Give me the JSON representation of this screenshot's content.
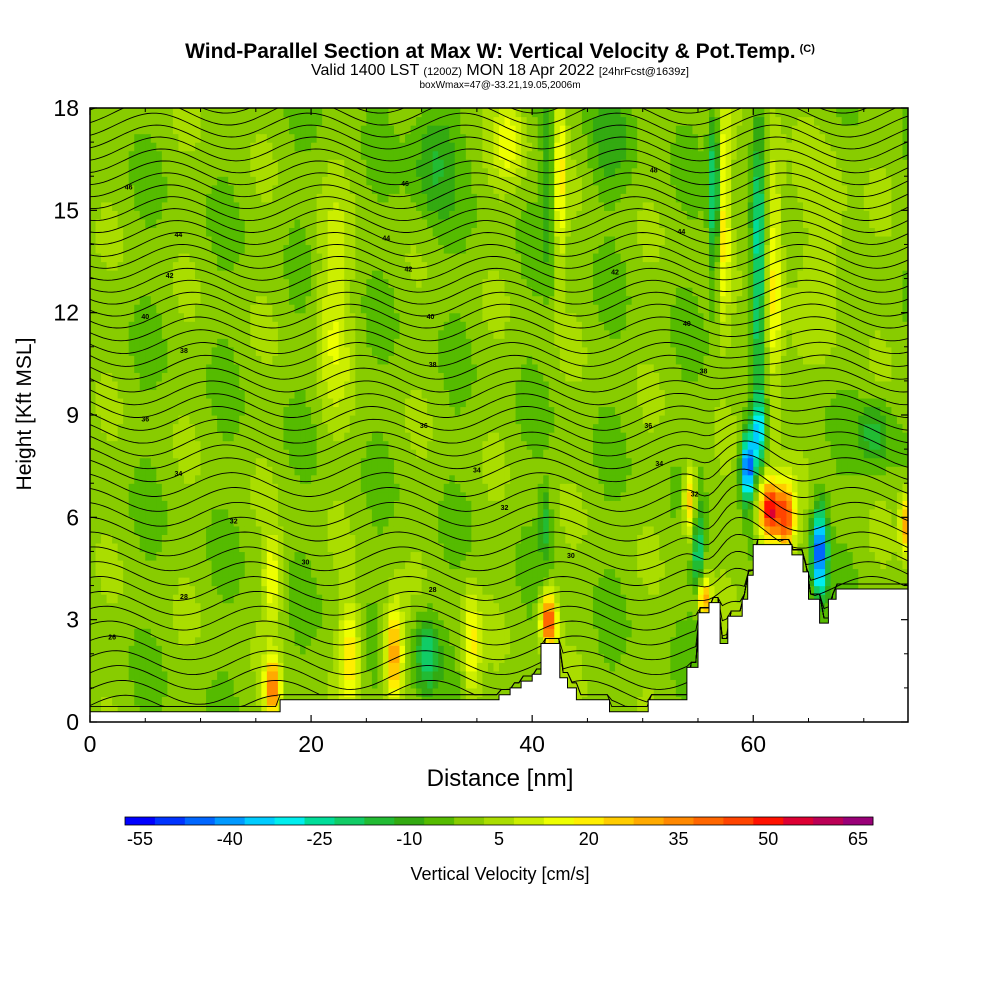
{
  "title": {
    "line1": "Wind-Parallel Section at Max W: Vertical Velocity & Pot.Temp.",
    "line1_mark": "(C)",
    "line2_main_a": "Valid 1400 LST",
    "line2_small_a": "(1200Z)",
    "line2_main_b": "MON 18 Apr 2022",
    "line2_small_b": "[24hrFcst@1639z]",
    "line3": "boxWmax=47@-33.21,19.05,2006m"
  },
  "chart_data": {
    "type": "heatmap",
    "title": "Wind-Parallel Section at Max W: Vertical Velocity & Pot.Temp.",
    "xlabel": "Distance [nm]",
    "ylabel": "Height [Kft MSL]",
    "xlim": [
      0,
      74
    ],
    "ylim": [
      0,
      18
    ],
    "xticks": [
      "0",
      "20",
      "40",
      "60"
    ],
    "yticks": [
      "0",
      "3",
      "6",
      "9",
      "12",
      "15",
      "18"
    ],
    "colorbar": {
      "label": "Vertical Velocity [cm/s]",
      "ticks": [
        "-55",
        "-40",
        "-25",
        "-10",
        "5",
        "20",
        "35",
        "50",
        "65"
      ],
      "levels": [
        -55,
        -50,
        -45,
        -40,
        -35,
        -30,
        -25,
        -20,
        -15,
        -10,
        -5,
        0,
        5,
        10,
        15,
        20,
        25,
        30,
        35,
        40,
        45,
        50,
        55,
        60,
        65,
        70
      ],
      "colors": [
        "#0000ff",
        "#0033ff",
        "#0066ff",
        "#0099ff",
        "#00ccff",
        "#00eeee",
        "#00dd99",
        "#11cc66",
        "#22bb33",
        "#33aa11",
        "#55bb00",
        "#88cc00",
        "#aadd00",
        "#ccee00",
        "#eeff00",
        "#ffee00",
        "#ffcc00",
        "#ffaa00",
        "#ff8800",
        "#ff6600",
        "#ff4400",
        "#ff1100",
        "#dd0033",
        "#bb0055",
        "#990077"
      ]
    },
    "terrain": [
      [
        0,
        0.3
      ],
      [
        17,
        0.3
      ],
      [
        17.2,
        0.65
      ],
      [
        37,
        0.65
      ],
      [
        37,
        0.8
      ],
      [
        38,
        0.8
      ],
      [
        38,
        1.0
      ],
      [
        39,
        1.0
      ],
      [
        39,
        1.2
      ],
      [
        40,
        1.2
      ],
      [
        40,
        1.4
      ],
      [
        40.8,
        1.4
      ],
      [
        40.8,
        2.3
      ],
      [
        42.5,
        2.3
      ],
      [
        42.5,
        1.3
      ],
      [
        43.2,
        1.3
      ],
      [
        43.2,
        1.0
      ],
      [
        44,
        1.0
      ],
      [
        44,
        0.65
      ],
      [
        47,
        0.65
      ],
      [
        47,
        0.3
      ],
      [
        50.5,
        0.3
      ],
      [
        50.5,
        0.65
      ],
      [
        54,
        0.65
      ],
      [
        54,
        1.6
      ],
      [
        55,
        1.6
      ],
      [
        55,
        3.2
      ],
      [
        56,
        3.2
      ],
      [
        56,
        3.5
      ],
      [
        57,
        3.5
      ],
      [
        57,
        2.3
      ],
      [
        57.7,
        2.3
      ],
      [
        57.7,
        3.1
      ],
      [
        59,
        3.1
      ],
      [
        59,
        3.6
      ],
      [
        59.5,
        3.6
      ],
      [
        59.5,
        4.3
      ],
      [
        60,
        4.3
      ],
      [
        60,
        5.2
      ],
      [
        63.5,
        5.2
      ],
      [
        63.5,
        4.9
      ],
      [
        64.5,
        4.9
      ],
      [
        64.5,
        4.4
      ],
      [
        65,
        4.4
      ],
      [
        65,
        3.6
      ],
      [
        66,
        3.6
      ],
      [
        66,
        2.9
      ],
      [
        66.8,
        2.9
      ],
      [
        66.8,
        3.6
      ],
      [
        67.5,
        3.6
      ],
      [
        67.5,
        3.9
      ],
      [
        74,
        3.9
      ]
    ],
    "w_features": [
      {
        "x": 16.5,
        "y": 1.0,
        "w": 38,
        "sx": 0.7,
        "sy": 0.9
      },
      {
        "x": 16.5,
        "y": 4.2,
        "w": 18,
        "sx": 0.8,
        "sy": 1.2
      },
      {
        "x": 23.5,
        "y": 2.0,
        "w": 22,
        "sx": 0.9,
        "sy": 1.4
      },
      {
        "x": 27.5,
        "y": 2.0,
        "w": 35,
        "sx": 0.8,
        "sy": 1.4
      },
      {
        "x": 30.5,
        "y": 2.0,
        "w": -22,
        "sx": 1.1,
        "sy": 1.2
      },
      {
        "x": 34.5,
        "y": 2.2,
        "w": 20,
        "sx": 0.8,
        "sy": 1.6
      },
      {
        "x": 41.5,
        "y": 3.0,
        "w": 48,
        "sx": 0.7,
        "sy": 0.8
      },
      {
        "x": 41.2,
        "y": 5.8,
        "w": -15,
        "sx": 0.5,
        "sy": 1.0
      },
      {
        "x": 41.5,
        "y": 16.0,
        "w": -10,
        "sx": 0.6,
        "sy": 2.8
      },
      {
        "x": 42.5,
        "y": 16.0,
        "w": 20,
        "sx": 0.5,
        "sy": 2.8
      },
      {
        "x": 38.0,
        "y": 17.0,
        "w": 15,
        "sx": 1.5,
        "sy": 1.2
      },
      {
        "x": 55.0,
        "y": 5.0,
        "w": -22,
        "sx": 0.5,
        "sy": 1.6
      },
      {
        "x": 54.3,
        "y": 6.5,
        "w": 30,
        "sx": 0.6,
        "sy": 1.0
      },
      {
        "x": 55.5,
        "y": 3.6,
        "w": 35,
        "sx": 0.6,
        "sy": 0.6
      },
      {
        "x": 56.5,
        "y": 15.5,
        "w": -28,
        "sx": 0.5,
        "sy": 2.5
      },
      {
        "x": 57.3,
        "y": 15.0,
        "w": 20,
        "sx": 0.6,
        "sy": 3.0
      },
      {
        "x": 60.5,
        "y": 13.5,
        "w": -25,
        "sx": 0.6,
        "sy": 4.0
      },
      {
        "x": 61.8,
        "y": 13.0,
        "w": 20,
        "sx": 0.8,
        "sy": 4.0
      },
      {
        "x": 59.5,
        "y": 7.5,
        "w": -50,
        "sx": 0.6,
        "sy": 1.0
      },
      {
        "x": 60.5,
        "y": 8.5,
        "w": -30,
        "sx": 0.6,
        "sy": 1.0
      },
      {
        "x": 61.5,
        "y": 6.2,
        "w": 55,
        "sx": 1.0,
        "sy": 0.9
      },
      {
        "x": 63.0,
        "y": 6.0,
        "w": 40,
        "sx": 0.8,
        "sy": 1.0
      },
      {
        "x": 66.0,
        "y": 5.0,
        "w": -50,
        "sx": 0.7,
        "sy": 1.3
      },
      {
        "x": 73.8,
        "y": 5.8,
        "w": 30,
        "sx": 0.5,
        "sy": 0.9
      },
      {
        "x": 71.0,
        "y": 8.5,
        "w": -15,
        "sx": 1.5,
        "sy": 1.0
      },
      {
        "x": 31.0,
        "y": 16.5,
        "w": -12,
        "sx": 2.0,
        "sy": 2.0
      },
      {
        "x": 22.0,
        "y": 12.0,
        "w": 12,
        "sx": 1.5,
        "sy": 3.0
      },
      {
        "x": 47.0,
        "y": 17.0,
        "w": -8,
        "sx": 2.0,
        "sy": 1.5
      },
      {
        "x": 67.0,
        "y": 14.0,
        "w": 8,
        "sx": 2.0,
        "sy": 3.0
      }
    ],
    "theta_labels": [
      {
        "x": 3.5,
        "y": 15.7,
        "t": "46"
      },
      {
        "x": 28.5,
        "y": 15.8,
        "t": "46"
      },
      {
        "x": 51.0,
        "y": 16.2,
        "t": "48"
      },
      {
        "x": 8.0,
        "y": 14.3,
        "t": "44"
      },
      {
        "x": 26.8,
        "y": 14.2,
        "t": "44"
      },
      {
        "x": 53.5,
        "y": 14.4,
        "t": "44"
      },
      {
        "x": 7.2,
        "y": 13.1,
        "t": "42"
      },
      {
        "x": 28.8,
        "y": 13.3,
        "t": "42"
      },
      {
        "x": 47.5,
        "y": 13.2,
        "t": "42"
      },
      {
        "x": 5.0,
        "y": 11.9,
        "t": "40"
      },
      {
        "x": 30.8,
        "y": 11.9,
        "t": "40"
      },
      {
        "x": 54.0,
        "y": 11.7,
        "t": "40"
      },
      {
        "x": 8.5,
        "y": 10.9,
        "t": "38"
      },
      {
        "x": 31.0,
        "y": 10.5,
        "t": "38"
      },
      {
        "x": 55.5,
        "y": 10.3,
        "t": "38"
      },
      {
        "x": 5.0,
        "y": 8.9,
        "t": "36"
      },
      {
        "x": 30.2,
        "y": 8.7,
        "t": "36"
      },
      {
        "x": 50.5,
        "y": 8.7,
        "t": "36"
      },
      {
        "x": 8.0,
        "y": 7.3,
        "t": "34"
      },
      {
        "x": 35.0,
        "y": 7.4,
        "t": "34"
      },
      {
        "x": 51.5,
        "y": 7.6,
        "t": "34"
      },
      {
        "x": 13.0,
        "y": 5.9,
        "t": "32"
      },
      {
        "x": 37.5,
        "y": 6.3,
        "t": "32"
      },
      {
        "x": 54.7,
        "y": 6.7,
        "t": "32"
      },
      {
        "x": 19.5,
        "y": 4.7,
        "t": "30"
      },
      {
        "x": 43.5,
        "y": 4.9,
        "t": "30"
      },
      {
        "x": 8.5,
        "y": 3.7,
        "t": "28"
      },
      {
        "x": 31.0,
        "y": 3.9,
        "t": "28"
      },
      {
        "x": 2.0,
        "y": 2.5,
        "t": "26"
      }
    ]
  }
}
